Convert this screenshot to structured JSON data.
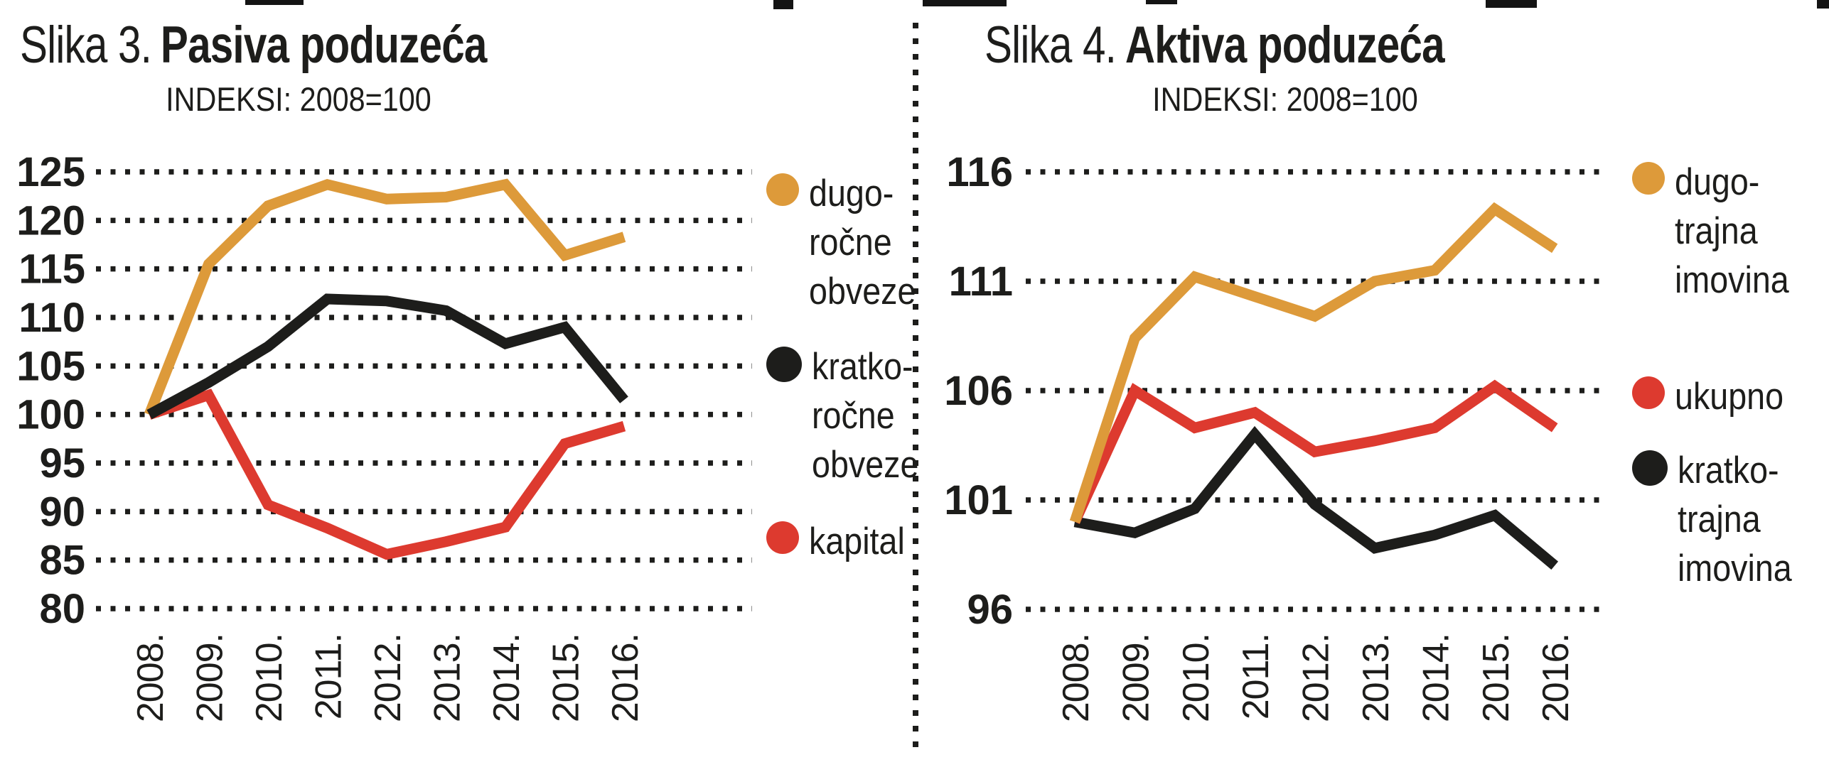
{
  "page": {
    "background": "#ffffff",
    "text_color": "#1d1d1b",
    "grid_dot_color": "#1d1d1b",
    "divider": "vertical dotted line between panels"
  },
  "chart_data": [
    {
      "id": "slika-3",
      "type": "line",
      "figure_label": "Slika 3.",
      "title": "Pasiva poduzeća",
      "subtitle": "INDEKSI: 2008=100",
      "x": [
        "2008.",
        "2009.",
        "2010.",
        "2011.",
        "2012.",
        "2013.",
        "2014.",
        "2015.",
        "2016."
      ],
      "ylim": [
        80,
        125
      ],
      "yticks": [
        "125",
        "120",
        "115",
        "110",
        "105",
        "100",
        "95",
        "90",
        "85",
        "80"
      ],
      "grid": "dotted-horizontal",
      "legend_position": "right",
      "series": [
        {
          "name": "dugoročne obveze",
          "legend_lines": [
            "dugo-",
            "ročne",
            "obveze"
          ],
          "color": "#dd9a3a",
          "values": [
            100,
            115.5,
            121.5,
            123.7,
            122.2,
            122.4,
            123.7,
            116.4,
            118.3
          ]
        },
        {
          "name": "kratkoročne obveze",
          "legend_lines": [
            "kratko-",
            "ročne",
            "obveze"
          ],
          "color": "#1d1d1b",
          "values": [
            100,
            103.3,
            107,
            111.9,
            111.7,
            110.7,
            107.3,
            109,
            101.5
          ]
        },
        {
          "name": "kapital",
          "legend_lines": [
            "kapital"
          ],
          "color": "#dd3a2f",
          "values": [
            100,
            102,
            90.7,
            88.3,
            85.6,
            86.9,
            88.4,
            97,
            98.8
          ]
        }
      ]
    },
    {
      "id": "slika-4",
      "type": "line",
      "figure_label": "Slika 4.",
      "title": "Aktiva poduzeća",
      "subtitle": "INDEKSI: 2008=100",
      "x": [
        "2008.",
        "2009.",
        "2010.",
        "2011.",
        "2012.",
        "2013.",
        "2014.",
        "2015.",
        "2016."
      ],
      "ylim": [
        96,
        116
      ],
      "yticks": [
        "116",
        "111",
        "106",
        "101",
        "96"
      ],
      "grid": "dotted-horizontal",
      "legend_position": "right",
      "series": [
        {
          "name": "dugotrajna imovina",
          "legend_lines": [
            "dugo-",
            "trajna",
            "imovina"
          ],
          "color": "#dd9a3a",
          "values": [
            100,
            108.4,
            111.2,
            110.3,
            109.4,
            111,
            111.5,
            114.3,
            112.5
          ]
        },
        {
          "name": "ukupno",
          "legend_lines": [
            "ukupno"
          ],
          "color": "#dd3a2f",
          "values": [
            100,
            106,
            104.3,
            105,
            103.2,
            103.7,
            104.3,
            106.2,
            104.3
          ]
        },
        {
          "name": "kratkotrajna imovina",
          "legend_lines": [
            "kratko-",
            "trajna",
            "imovina"
          ],
          "color": "#1d1d1b",
          "values": [
            100,
            99.5,
            100.6,
            104,
            100.8,
            98.8,
            99.4,
            100.3,
            98
          ]
        }
      ]
    }
  ]
}
